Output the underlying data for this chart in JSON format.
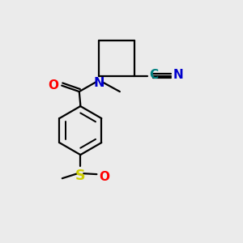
{
  "bg_color": "#ebebeb",
  "bond_color": "#000000",
  "bond_width": 1.6,
  "atom_colors": {
    "N": "#0000cc",
    "O": "#ff0000",
    "S": "#cccc00",
    "C_cyan": "#008080"
  },
  "font_size_atoms": 10.5,
  "figsize": [
    3.0,
    3.0
  ],
  "dpi": 100
}
